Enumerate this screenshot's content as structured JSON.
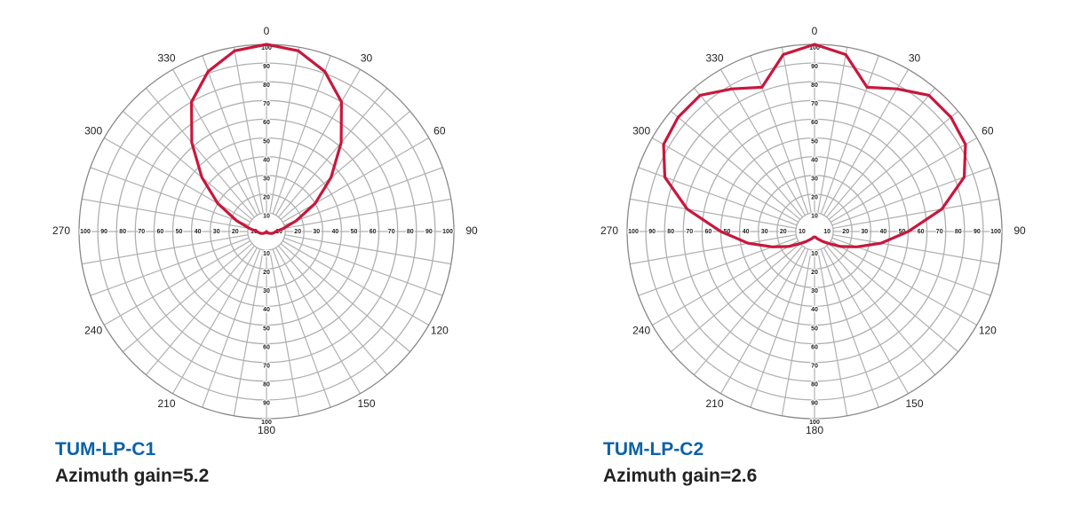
{
  "chart_data": [
    {
      "type": "polar",
      "title": "TUM-LP-C1",
      "subtitle": "Azimuth gain=5.2",
      "theta": [
        0,
        10,
        20,
        30,
        40,
        50,
        60,
        70,
        80,
        90,
        100,
        110,
        120,
        130,
        140,
        150,
        160,
        170,
        180,
        190,
        200,
        210,
        220,
        230,
        240,
        250,
        260,
        270,
        280,
        290,
        300,
        310,
        320,
        330,
        340,
        350
      ],
      "values": [
        100,
        98,
        91,
        80,
        62,
        45,
        30,
        17,
        9,
        5,
        4,
        3,
        2,
        1,
        1,
        0,
        0,
        0,
        0,
        0,
        0,
        0,
        1,
        1,
        2,
        3,
        4,
        5,
        9,
        17,
        30,
        45,
        62,
        80,
        91,
        98
      ],
      "color": "#c8173c",
      "rlim": [
        0,
        100
      ],
      "rticks": [
        10,
        20,
        30,
        40,
        50,
        60,
        70,
        80,
        90,
        100
      ],
      "thetaticks": [
        0,
        30,
        60,
        90,
        120,
        150,
        180,
        210,
        240,
        270,
        300,
        330
      ],
      "grid": true
    },
    {
      "type": "polar",
      "title": "TUM-LP-C2",
      "subtitle": "Azimuth gain=2.6",
      "theta": [
        0,
        10,
        20,
        30,
        40,
        50,
        60,
        70,
        80,
        90,
        100,
        110,
        120,
        130,
        140,
        150,
        160,
        170,
        180,
        190,
        200,
        210,
        220,
        230,
        240,
        250,
        260,
        270,
        280,
        290,
        300,
        310,
        320,
        330,
        340,
        350
      ],
      "values": [
        100,
        96,
        82,
        88,
        95,
        95,
        93,
        85,
        69,
        50,
        36,
        24,
        16,
        10,
        7,
        5,
        4,
        3,
        3,
        3,
        4,
        5,
        7,
        10,
        16,
        24,
        36,
        50,
        69,
        85,
        93,
        95,
        95,
        88,
        82,
        96
      ],
      "color": "#c8173c",
      "rlim": [
        0,
        100
      ],
      "rticks": [
        10,
        20,
        30,
        40,
        50,
        60,
        70,
        80,
        90,
        100
      ],
      "thetaticks": [
        0,
        30,
        60,
        90,
        120,
        150,
        180,
        210,
        240,
        270,
        300,
        330
      ],
      "grid": true
    }
  ]
}
